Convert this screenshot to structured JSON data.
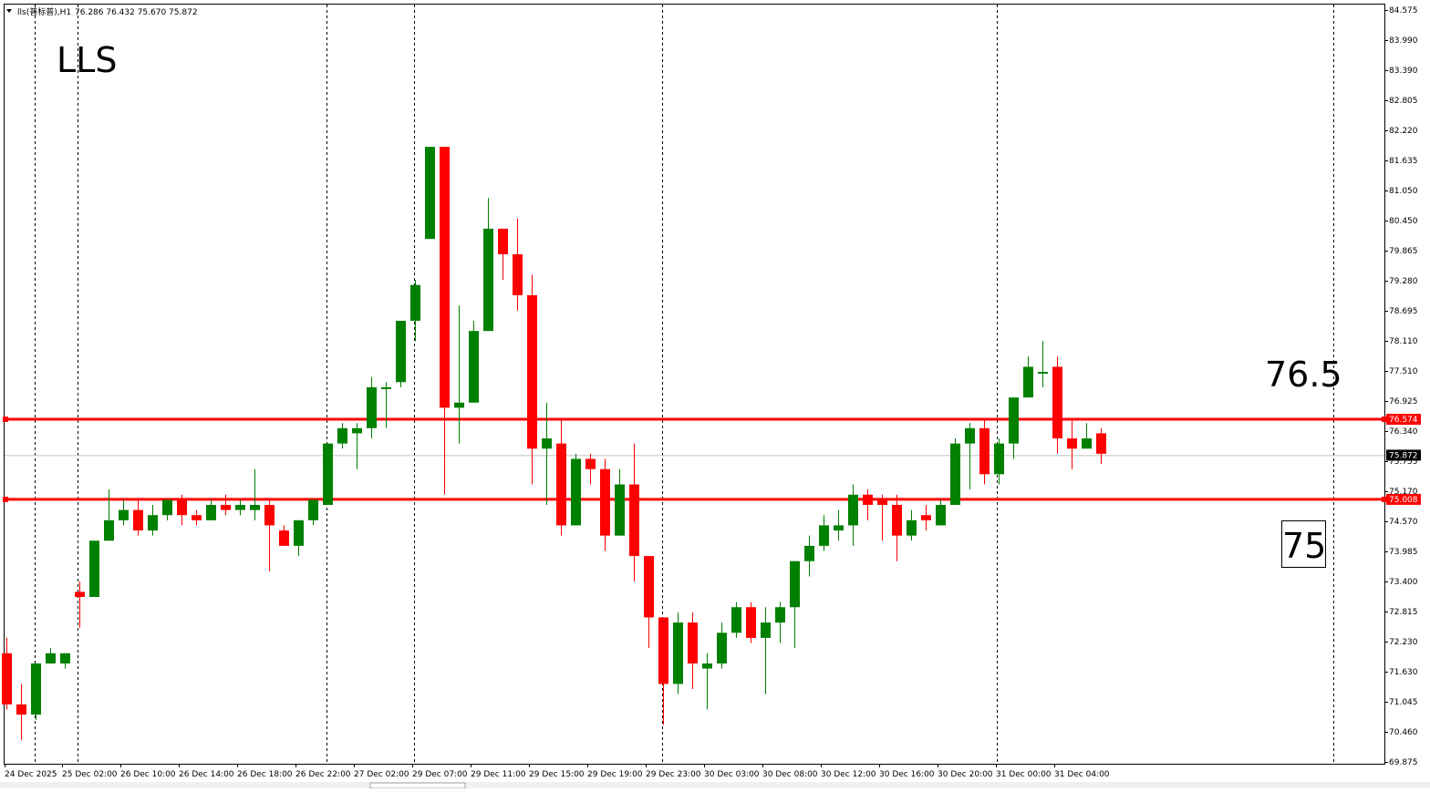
{
  "header": {
    "symbol_line": "lls(普标普),H1",
    "ohlc": "76.286 76.432 75.670 75.872",
    "menu_icon": "triangle-down-icon"
  },
  "chart_data": {
    "type": "candlestick",
    "title": "LLS",
    "timeframe": "H1",
    "ylim": [
      69.875,
      84.575
    ],
    "grid": "vertical-dotted",
    "y_ticks": [
      "84.575",
      "83.990",
      "83.390",
      "82.805",
      "82.220",
      "81.635",
      "81.050",
      "80.450",
      "79.865",
      "79.280",
      "78.695",
      "78.110",
      "77.510",
      "76.925",
      "76.340",
      "75.755",
      "75.170",
      "74.570",
      "73.985",
      "73.400",
      "72.815",
      "72.230",
      "71.630",
      "71.045",
      "70.460",
      "69.875"
    ],
    "x_ticks": [
      "24 Dec 2025",
      "25 Dec 02:00",
      "26 Dec 10:00",
      "26 Dec 14:00",
      "26 Dec 18:00",
      "26 Dec 22:00",
      "27 Dec 02:00",
      "29 Dec 07:00",
      "29 Dec 11:00",
      "29 Dec 15:00",
      "29 Dec 19:00",
      "29 Dec 23:00",
      "30 Dec 03:00",
      "30 Dec 08:00",
      "30 Dec 12:00",
      "30 Dec 16:00",
      "30 Dec 20:00",
      "31 Dec 00:00",
      "31 Dec 04:00"
    ],
    "current_price": "75.872",
    "levels": [
      {
        "value": 76.574,
        "label": "76.574",
        "annotation": "76.5",
        "color": "#ff0000"
      },
      {
        "value": 75.008,
        "label": "75.008",
        "annotation": "75",
        "color": "#ff0000"
      }
    ],
    "colors": {
      "bull": "#008000",
      "bear": "#ff0000",
      "grid": "#000000",
      "current_line": "#c0c0c0",
      "price_tag": "#000000"
    },
    "candles": [
      [
        72.0,
        72.3,
        70.9,
        71.0
      ],
      [
        71.0,
        71.4,
        70.3,
        70.8
      ],
      [
        70.8,
        71.8,
        70.7,
        71.8
      ],
      [
        71.8,
        72.1,
        71.8,
        72.0
      ],
      [
        71.8,
        72.0,
        71.7,
        72.0
      ],
      [
        73.2,
        73.4,
        72.5,
        73.1
      ],
      [
        73.1,
        74.2,
        73.1,
        74.2
      ],
      [
        74.2,
        75.2,
        74.2,
        74.6
      ],
      [
        74.6,
        75.0,
        74.5,
        74.8
      ],
      [
        74.8,
        75.0,
        74.3,
        74.4
      ],
      [
        74.4,
        74.9,
        74.3,
        74.7
      ],
      [
        74.7,
        75.0,
        74.6,
        75.0
      ],
      [
        75.0,
        75.1,
        74.5,
        74.7
      ],
      [
        74.7,
        74.8,
        74.5,
        74.6
      ],
      [
        74.6,
        75.0,
        74.6,
        74.9
      ],
      [
        74.9,
        75.1,
        74.7,
        74.8
      ],
      [
        74.8,
        75.0,
        74.7,
        74.9
      ],
      [
        74.8,
        75.6,
        74.6,
        74.9
      ],
      [
        74.9,
        75.0,
        73.6,
        74.5
      ],
      [
        74.4,
        74.5,
        74.1,
        74.1
      ],
      [
        74.1,
        74.6,
        73.9,
        74.6
      ],
      [
        74.6,
        75.0,
        74.5,
        75.0
      ],
      [
        74.9,
        76.1,
        74.9,
        76.1
      ],
      [
        76.1,
        76.5,
        76.0,
        76.4
      ],
      [
        76.3,
        76.5,
        75.6,
        76.4
      ],
      [
        76.4,
        77.4,
        76.2,
        77.2
      ],
      [
        77.2,
        77.3,
        76.4,
        77.2
      ],
      [
        77.3,
        78.5,
        77.2,
        78.5
      ],
      [
        78.5,
        79.3,
        78.1,
        79.2
      ],
      [
        80.1,
        81.9,
        80.1,
        81.9
      ],
      [
        81.9,
        81.8,
        75.1,
        76.8
      ],
      [
        76.8,
        78.8,
        76.1,
        76.9
      ],
      [
        76.9,
        78.5,
        76.9,
        78.3
      ],
      [
        78.3,
        80.9,
        78.3,
        80.3
      ],
      [
        80.3,
        80.3,
        79.3,
        79.8
      ],
      [
        79.8,
        80.5,
        78.7,
        79.0
      ],
      [
        79.0,
        79.4,
        75.3,
        76.0
      ],
      [
        76.0,
        76.9,
        74.9,
        76.2
      ],
      [
        76.1,
        76.6,
        74.3,
        74.5
      ],
      [
        74.5,
        75.9,
        74.5,
        75.8
      ],
      [
        75.8,
        75.9,
        75.3,
        75.6
      ],
      [
        75.6,
        75.8,
        74.0,
        74.3
      ],
      [
        74.3,
        75.6,
        74.3,
        75.3
      ],
      [
        75.3,
        76.1,
        73.4,
        73.9
      ],
      [
        73.9,
        73.9,
        72.1,
        72.7
      ],
      [
        72.7,
        72.7,
        70.6,
        71.4
      ],
      [
        71.4,
        72.8,
        71.2,
        72.6
      ],
      [
        72.6,
        72.8,
        71.3,
        71.8
      ],
      [
        71.7,
        72.0,
        70.9,
        71.8
      ],
      [
        71.8,
        72.6,
        71.7,
        72.4
      ],
      [
        72.4,
        73.0,
        72.3,
        72.9
      ],
      [
        72.9,
        73.0,
        72.2,
        72.3
      ],
      [
        72.3,
        72.9,
        71.2,
        72.6
      ],
      [
        72.6,
        73.0,
        72.2,
        72.9
      ],
      [
        72.9,
        73.8,
        72.1,
        73.8
      ],
      [
        73.8,
        74.3,
        73.5,
        74.1
      ],
      [
        74.1,
        74.7,
        74.0,
        74.5
      ],
      [
        74.4,
        74.8,
        74.2,
        74.5
      ],
      [
        74.5,
        75.3,
        74.1,
        75.1
      ],
      [
        75.1,
        75.2,
        74.6,
        74.9
      ],
      [
        75.0,
        75.1,
        74.2,
        74.9
      ],
      [
        74.9,
        75.1,
        73.8,
        74.3
      ],
      [
        74.3,
        74.8,
        74.2,
        74.6
      ],
      [
        74.7,
        74.9,
        74.4,
        74.6
      ],
      [
        74.5,
        75.0,
        74.5,
        74.9
      ],
      [
        74.9,
        76.2,
        74.9,
        76.1
      ],
      [
        76.1,
        76.5,
        75.2,
        76.4
      ],
      [
        76.4,
        76.6,
        75.3,
        75.5
      ],
      [
        75.5,
        76.2,
        75.3,
        76.1
      ],
      [
        76.1,
        77.0,
        75.8,
        77.0
      ],
      [
        77.0,
        77.8,
        77.0,
        77.6
      ],
      [
        77.5,
        78.1,
        77.2,
        77.5
      ],
      [
        77.6,
        77.8,
        75.9,
        76.2
      ],
      [
        76.2,
        76.6,
        75.6,
        76.0
      ],
      [
        76.0,
        76.5,
        76.0,
        76.2
      ],
      [
        76.3,
        76.4,
        75.7,
        75.9
      ]
    ]
  }
}
